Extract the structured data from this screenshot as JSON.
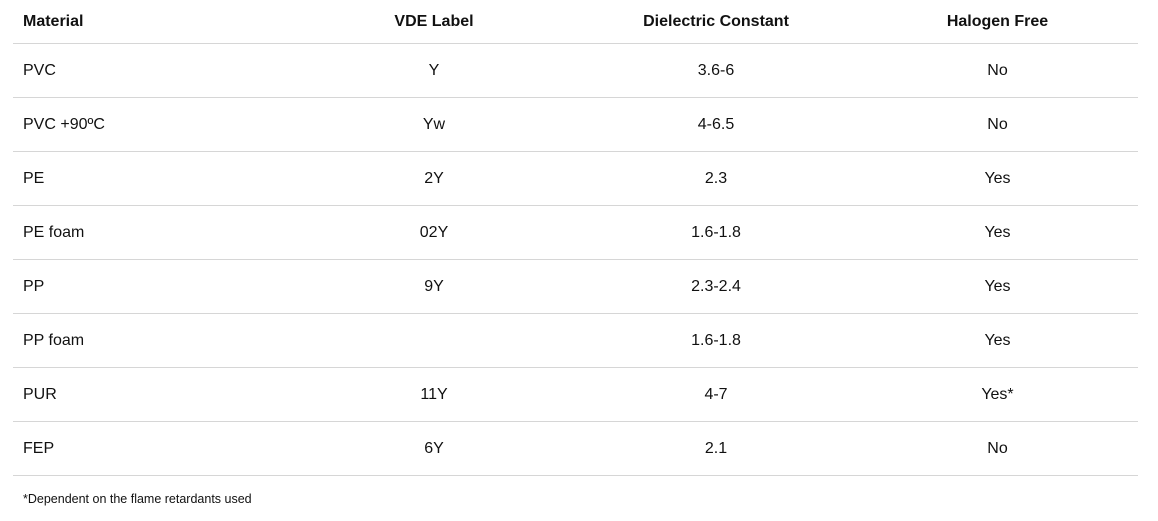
{
  "table": {
    "headers": [
      "Material",
      "VDE Label",
      "Dielectric Constant",
      "Halogen Free"
    ],
    "rows": [
      [
        "PVC",
        "Y",
        "3.6-6",
        "No"
      ],
      [
        "PVC +90ºC",
        "Yw",
        "4-6.5",
        "No"
      ],
      [
        "PE",
        "2Y",
        "2.3",
        "Yes"
      ],
      [
        "PE foam",
        "02Y",
        "1.6-1.8",
        "Yes"
      ],
      [
        "PP",
        "9Y",
        "2.3-2.4",
        "Yes"
      ],
      [
        "PP foam",
        "",
        "1.6-1.8",
        "Yes"
      ],
      [
        "PUR",
        "11Y",
        "4-7",
        "Yes*"
      ],
      [
        "FEP",
        "6Y",
        "2.1",
        "No"
      ]
    ]
  },
  "footnote": "*Dependent on the flame retardants used",
  "colors": {
    "text": "#111111",
    "divider": "#d6d6d6",
    "background": "#ffffff"
  }
}
